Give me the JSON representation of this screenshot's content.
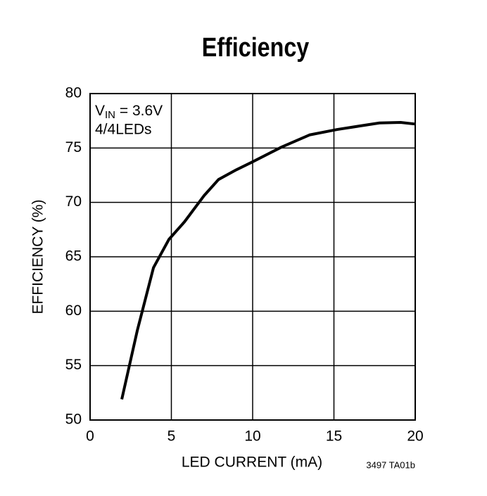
{
  "chart_data": {
    "type": "line",
    "title": "Efficiency",
    "xlabel": "LED CURRENT (mA)",
    "ylabel": "EFFICIENCY (%)",
    "annotation": {
      "symbol": "V",
      "subscript": "IN",
      "text": " = 3.6V",
      "line2": "4/4LEDs"
    },
    "footnote": "3497 TA01b",
    "x": [
      1.95,
      2.9,
      3.9,
      4.85,
      5.8,
      7.0,
      7.9,
      9.0,
      9.96,
      11.8,
      13.5,
      15.2,
      16.5,
      17.8,
      19.1,
      20
    ],
    "series": [
      {
        "name": "Efficiency",
        "color": "#000000",
        "values": [
          51.9,
          58.2,
          64.0,
          66.6,
          68.2,
          70.6,
          72.1,
          73.0,
          73.7,
          75.1,
          76.2,
          76.7,
          77.0,
          77.3,
          77.35,
          77.2
        ]
      }
    ],
    "xlim": [
      0,
      20
    ],
    "xticks": [
      0,
      5,
      10,
      15,
      20
    ],
    "ylim": [
      50,
      80
    ],
    "yticks": [
      50,
      55,
      60,
      65,
      70,
      75,
      80
    ],
    "grid": true
  }
}
